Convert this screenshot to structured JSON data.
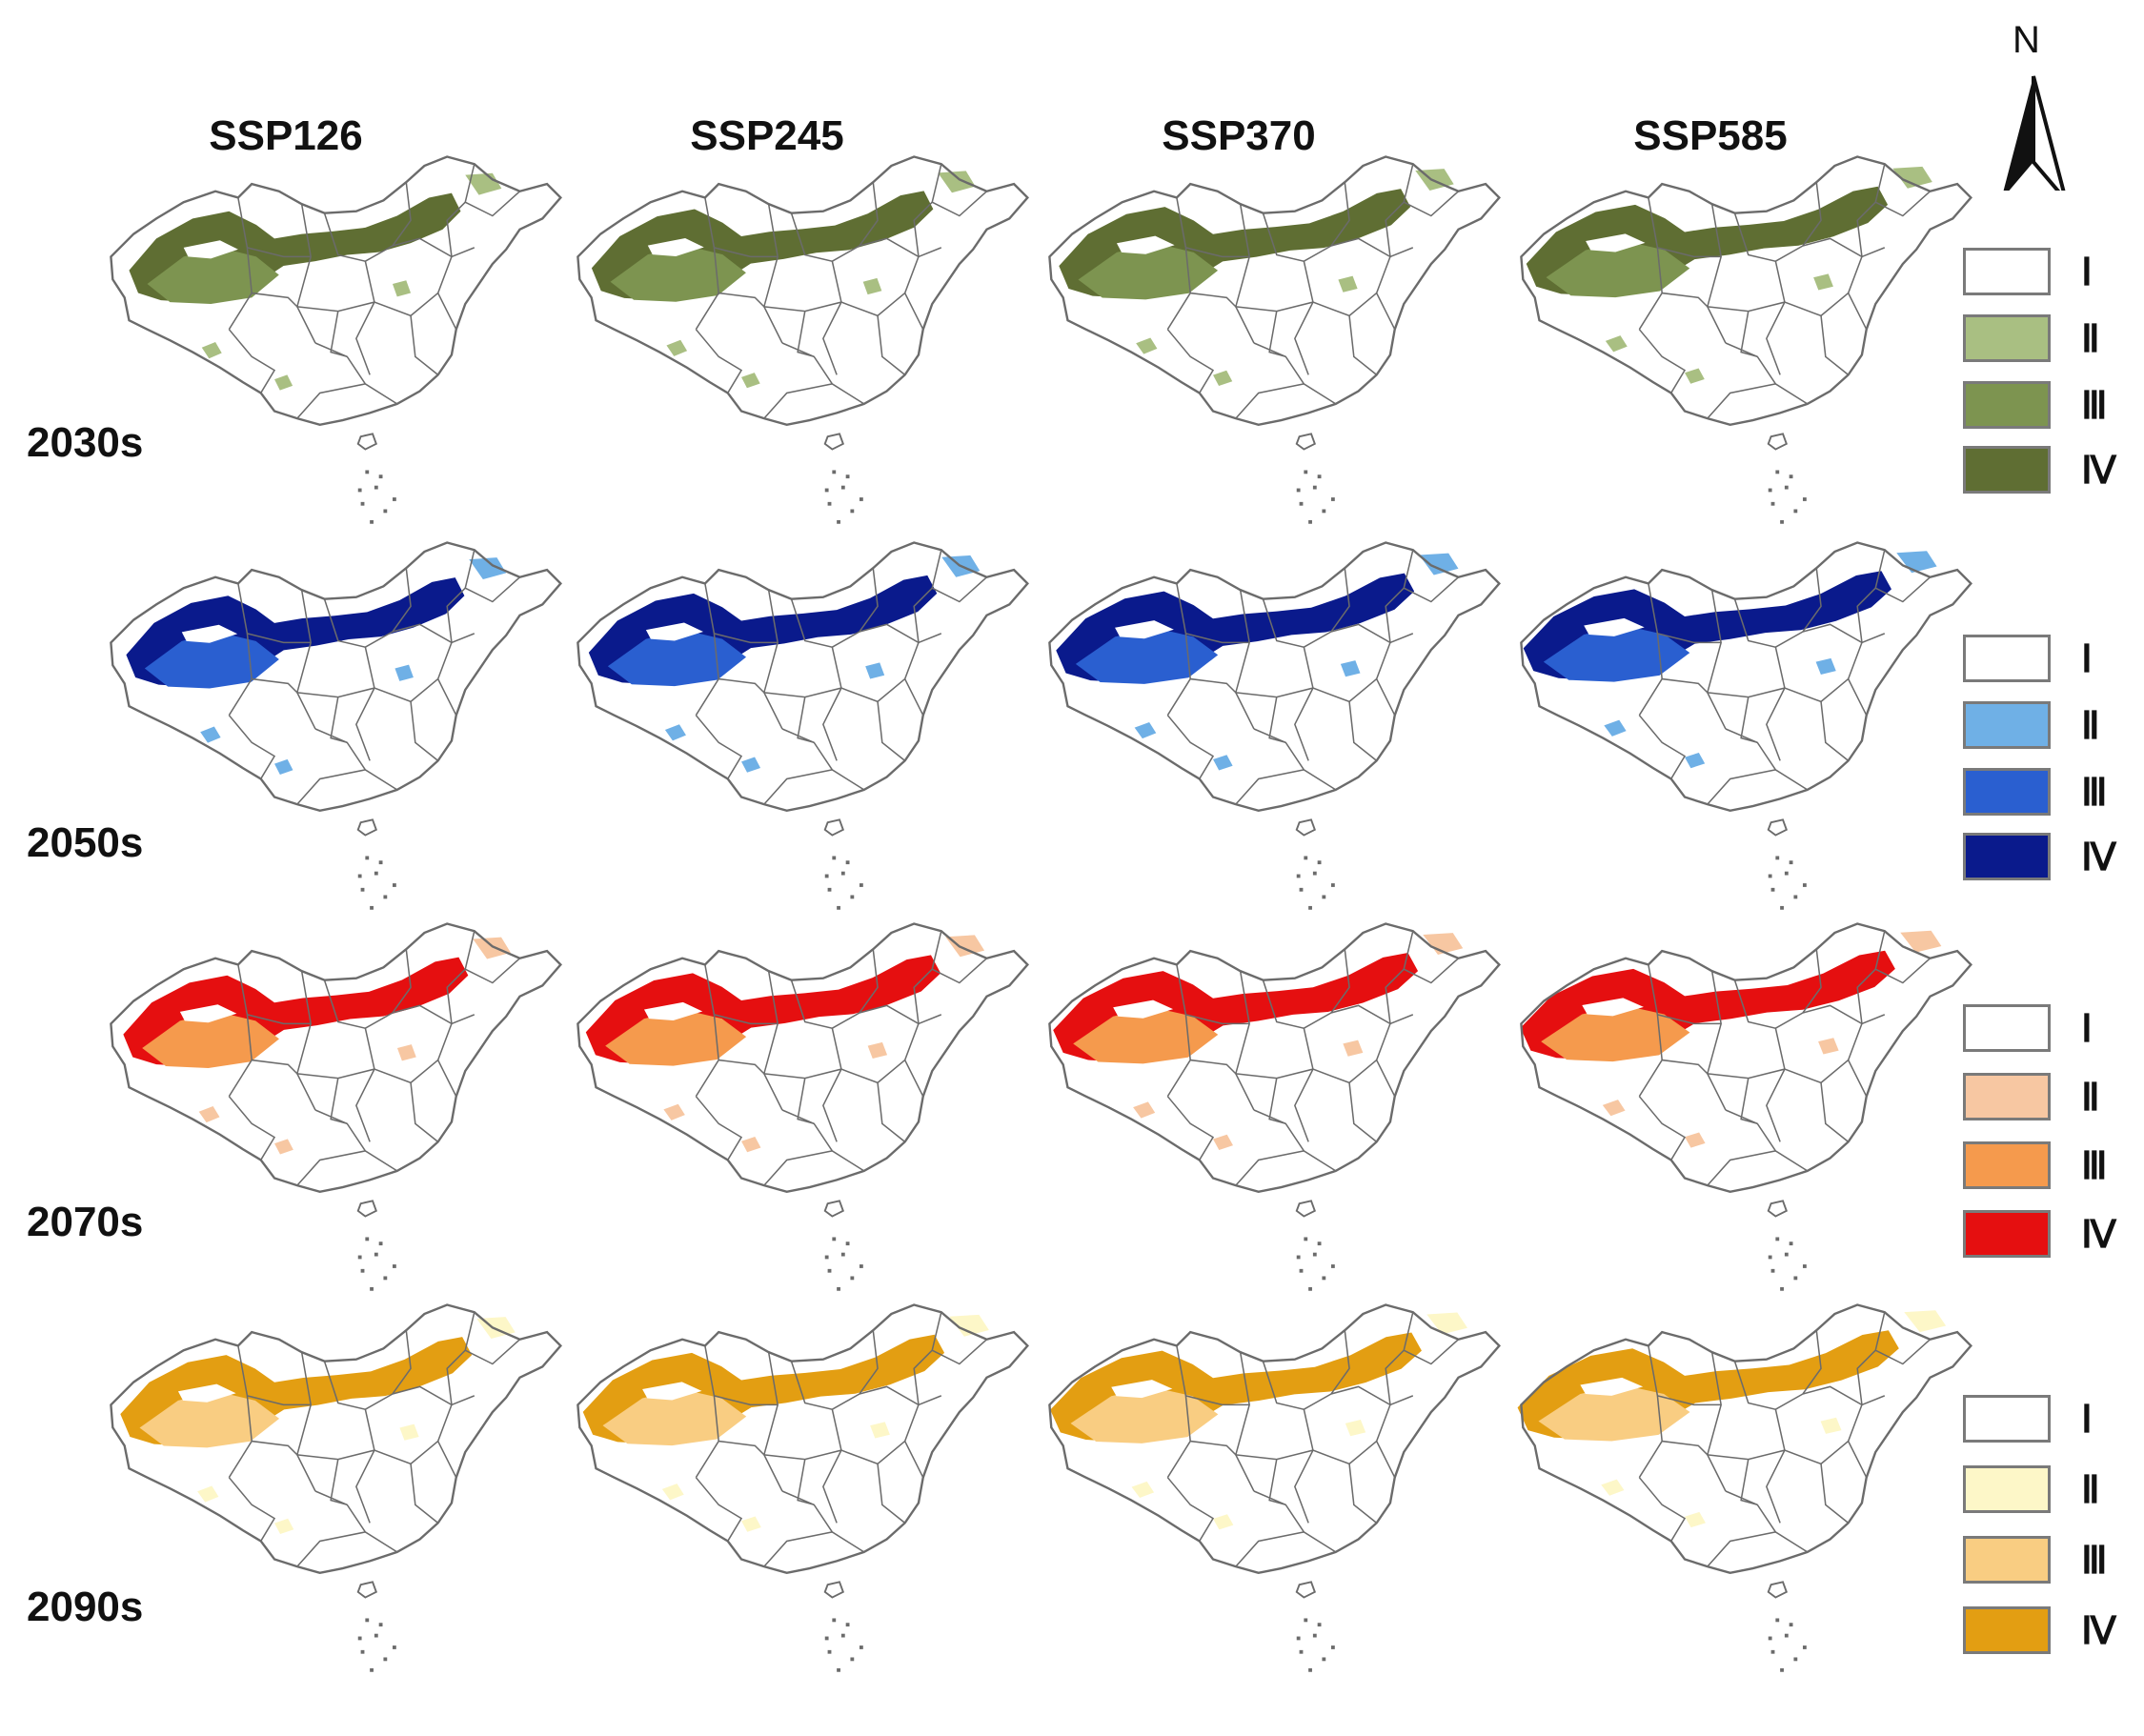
{
  "columns": [
    "SSP126",
    "SSP245",
    "SSP370",
    "SSP585"
  ],
  "rows": [
    {
      "label": "2030s",
      "palette": {
        "I": "#ffffff",
        "II": "#a9bf82",
        "III": "#7d9450",
        "IV": "#5f6e33"
      }
    },
    {
      "label": "2050s",
      "palette": {
        "I": "#ffffff",
        "II": "#6fb0e6",
        "III": "#2a5fd0",
        "IV": "#0a1a8c"
      }
    },
    {
      "label": "2070s",
      "palette": {
        "I": "#ffffff",
        "II": "#f7c7a2",
        "III": "#f59a4d",
        "IV": "#e50f10"
      }
    },
    {
      "label": "2090s",
      "palette": {
        "I": "#ffffff",
        "II": "#fdf7c8",
        "III": "#f9cd82",
        "IV": "#e39e12"
      }
    }
  ],
  "legend_labels": [
    "Ⅰ",
    "Ⅱ",
    "Ⅲ",
    "Ⅳ"
  ],
  "north_label": "N",
  "boundary_color": "#6b6b6b"
}
